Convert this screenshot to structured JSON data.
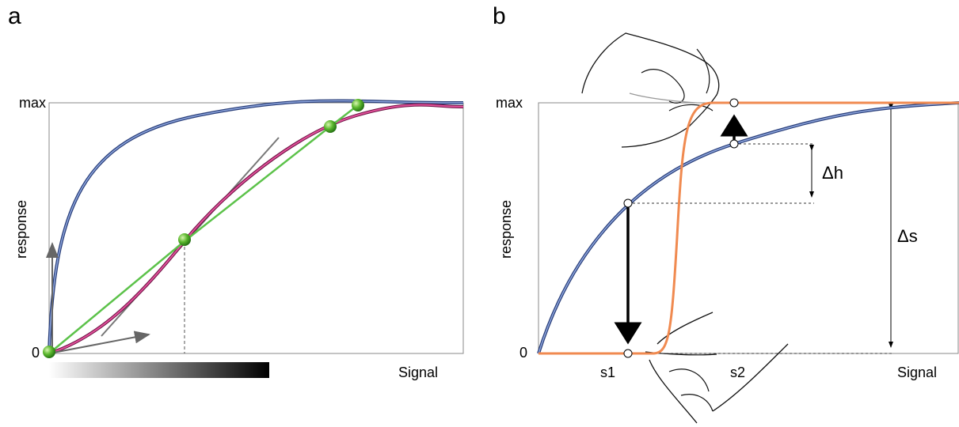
{
  "panels": [
    {
      "label": "a",
      "y_top": "max",
      "y_bottom": "0",
      "y_axis": "response",
      "x_axis": "Signal"
    },
    {
      "label": "b",
      "y_top": "max",
      "y_bottom": "0",
      "y_axis": "response",
      "x_axis": "Signal",
      "marks": [
        "s1",
        "s2"
      ],
      "delta_h": "Δh",
      "delta_s": "Δs"
    }
  ]
}
